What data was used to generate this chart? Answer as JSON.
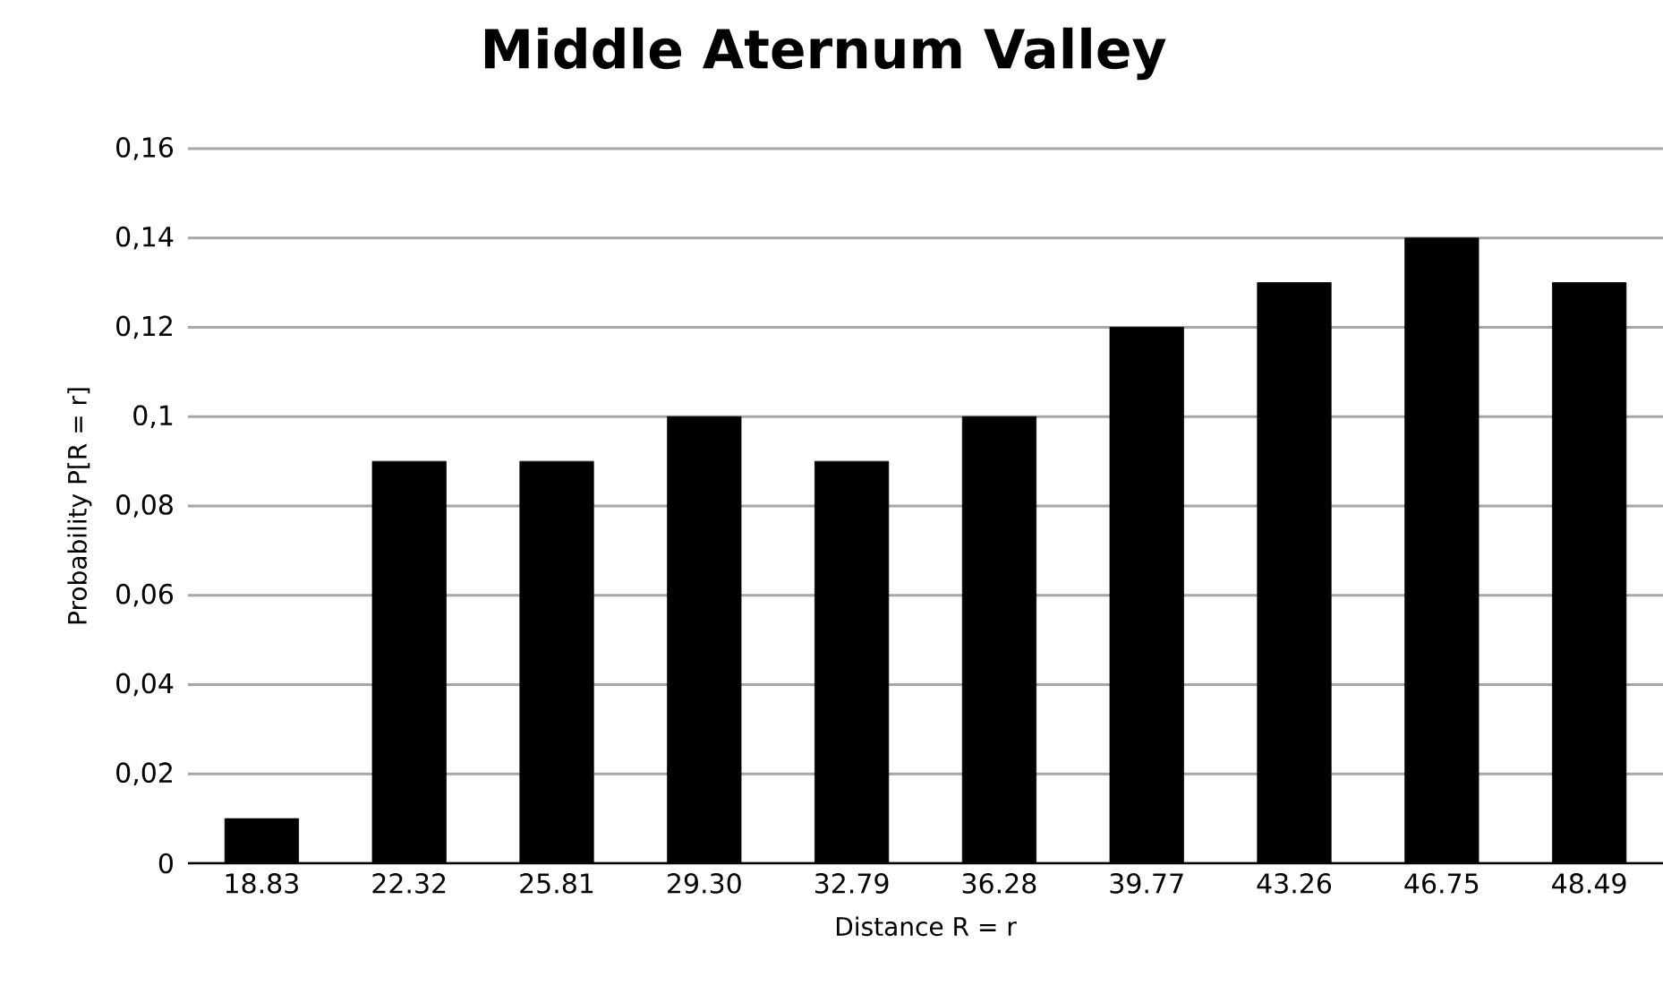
{
  "chart_data": {
    "type": "bar",
    "title": "Middle Aternum Valley",
    "xlabel": "Distance R = r",
    "ylabel": "Probability P[R = r]",
    "categories": [
      "18.83",
      "22.32",
      "25.81",
      "29.30",
      "32.79",
      "36.28",
      "39.77",
      "43.26",
      "46.75",
      "48.49"
    ],
    "values": [
      0.01,
      0.09,
      0.09,
      0.1,
      0.09,
      0.1,
      0.12,
      0.13,
      0.14,
      0.13
    ],
    "color": "#000000",
    "ylim": [
      0,
      0.16
    ],
    "yticks": [
      0,
      {
        "value": 0.02,
        "label": "0,02"
      },
      {
        "value": 0.04,
        "label": "0,04"
      },
      {
        "value": 0.06,
        "label": "0,06"
      },
      {
        "value": 0.08,
        "label": "0,08"
      },
      {
        "value": 0.1,
        "label": "0,1"
      },
      {
        "value": 0.12,
        "label": "0,12"
      },
      {
        "value": 0.14,
        "label": "0,14"
      },
      {
        "value": 0.16,
        "label": "0,16"
      }
    ],
    "grid": "y"
  }
}
